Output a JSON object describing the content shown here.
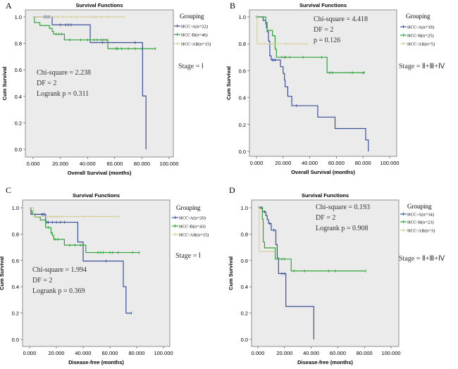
{
  "colors": {
    "HCC-A": "#3a4f9a",
    "HCC-B": "#2fa33a",
    "HCC-AB": "#d8cf9a",
    "plot_bg": "#ebebeb"
  },
  "chart_data": [
    {
      "panel": "A",
      "type": "line",
      "title": "Survival Functions",
      "xlabel": "Overall Survival (months)",
      "ylabel": "Cum Survival",
      "xlim": [
        0,
        100
      ],
      "ylim": [
        0,
        1
      ],
      "xticks": [
        "0.000",
        "20.000",
        "40.000",
        "60.000",
        "80.000",
        "100.000"
      ],
      "yticks": [
        "0.0",
        "0.2",
        "0.4",
        "0.6",
        "0.8",
        "1.0"
      ],
      "legend_title": "Grouping",
      "stats": [
        "Chi-square = 2.238",
        "DF = 2",
        "Logrank p = 0.311"
      ],
      "stage": "Stage = Ⅰ",
      "series": [
        {
          "name": "HCC-A(n=22)",
          "key": "HCC-A",
          "steps": [
            [
              0,
              1
            ],
            [
              14,
              0.94
            ],
            [
              42,
              0.806
            ],
            [
              80.5,
              0.403
            ],
            [
              83,
              0
            ]
          ],
          "end": 83,
          "censored": [
            8,
            9,
            10,
            11,
            12,
            20,
            24,
            26,
            28,
            51,
            75
          ]
        },
        {
          "name": "HCC-B(n=46)",
          "key": "HCC-B",
          "steps": [
            [
              0,
              1
            ],
            [
              1,
              0.957
            ],
            [
              5,
              0.935
            ],
            [
              12,
              0.913
            ],
            [
              14,
              0.891
            ],
            [
              15,
              0.87
            ],
            [
              23,
              0.826
            ],
            [
              55,
              0.76
            ]
          ],
          "end": 90,
          "censored": [
            17,
            19,
            21,
            27,
            35,
            40,
            42,
            45,
            47,
            50,
            52,
            54,
            61,
            62,
            65,
            70,
            75,
            80,
            90
          ]
        },
        {
          "name": "HCC-AB(n=15)",
          "key": "HCC-AB",
          "steps": [
            [
              0,
              1
            ]
          ],
          "end": 67,
          "censored": [
            15,
            18,
            22,
            28,
            32,
            36,
            43,
            45,
            46,
            50,
            55,
            67
          ]
        }
      ]
    },
    {
      "panel": "B",
      "type": "line",
      "title": "Survival Functions",
      "xlabel": "Overall Survival (months)",
      "ylabel": "Cum Survival",
      "xlim": [
        0,
        100
      ],
      "ylim": [
        0,
        1
      ],
      "xticks": [
        "0.000",
        "20.000",
        "40.000",
        "60.000",
        "80.000",
        "100.000"
      ],
      "yticks": [
        "0.0",
        "0.2",
        "0.4",
        "0.6",
        "0.8",
        "1.0"
      ],
      "legend_title": "Grouping",
      "stats": [
        "Chi-square = 4.418",
        "DF = 2",
        "p = 0.126"
      ],
      "stage": "Stage = Ⅱ+Ⅲ+Ⅳ",
      "series": [
        {
          "name": "HCC-A(n=39)",
          "key": "HCC-A",
          "steps": [
            [
              0,
              1
            ],
            [
              5,
              0.974
            ],
            [
              7,
              0.949
            ],
            [
              7.5,
              0.92
            ],
            [
              8,
              0.89
            ],
            [
              9,
              0.82
            ],
            [
              10,
              0.71
            ],
            [
              11,
              0.68
            ],
            [
              18,
              0.63
            ],
            [
              20,
              0.58
            ],
            [
              21,
              0.53
            ],
            [
              21.5,
              0.48
            ],
            [
              23.5,
              0.41
            ],
            [
              26.5,
              0.34
            ],
            [
              46,
              0.255
            ],
            [
              59,
              0.17
            ],
            [
              82,
              0.085
            ],
            [
              84,
              0
            ]
          ],
          "end": 84,
          "censored": [
            12,
            13,
            14,
            30
          ]
        },
        {
          "name": "HCC-B(n=25)",
          "key": "HCC-B",
          "steps": [
            [
              0,
              1
            ],
            [
              7,
              0.96
            ],
            [
              8,
              0.9
            ],
            [
              12,
              0.86
            ],
            [
              14,
              0.76
            ],
            [
              15,
              0.7
            ],
            [
              53,
              0.585
            ]
          ],
          "end": 81,
          "censored": [
            0,
            19,
            21,
            22,
            25,
            35,
            49,
            55,
            57,
            72,
            80,
            81
          ]
        },
        {
          "name": "HCC-AB(n=5)",
          "key": "HCC-AB",
          "steps": [
            [
              0,
              1
            ],
            [
              0.5,
              0.8
            ]
          ],
          "end": 38,
          "censored": [
            6,
            13,
            22,
            38
          ]
        }
      ]
    },
    {
      "panel": "C",
      "type": "line",
      "title": "Survival Functions",
      "xlabel": "Disease-free (months)",
      "ylabel": "Cum Survival",
      "xlim": [
        0,
        100
      ],
      "ylim": [
        0,
        1
      ],
      "xticks": [
        "0.000",
        "20.000",
        "40.000",
        "60.000",
        "80.000",
        "100.000"
      ],
      "yticks": [
        "0.0",
        "0.2",
        "0.4",
        "0.6",
        "0.8",
        "1.0"
      ],
      "legend_title": "Grouping",
      "stats": [
        "Chi-square = 1.994",
        "DF = 2",
        "Logrank p = 0.369"
      ],
      "stage": "Stage = Ⅰ",
      "series": [
        {
          "name": "HCC-A(n=20)",
          "key": "HCC-A",
          "steps": [
            [
              0,
              1
            ],
            [
              1,
              0.95
            ],
            [
              12,
              0.89
            ],
            [
              36,
              0.74
            ],
            [
              40,
              0.595
            ],
            [
              70,
              0.4
            ],
            [
              72,
              0.2
            ]
          ],
          "end": 76,
          "censored": [
            9,
            10,
            11,
            13,
            14,
            17,
            20,
            23,
            26,
            57,
            76
          ]
        },
        {
          "name": "HCC-B(n=43)",
          "key": "HCC-B",
          "steps": [
            [
              0,
              1
            ],
            [
              1,
              0.976
            ],
            [
              2,
              0.953
            ],
            [
              4,
              0.93
            ],
            [
              8,
              0.907
            ],
            [
              12,
              0.85
            ],
            [
              16,
              0.81
            ],
            [
              17,
              0.79
            ],
            [
              18,
              0.76
            ],
            [
              26,
              0.716
            ],
            [
              42,
              0.66
            ]
          ],
          "end": 82,
          "censored": [
            14,
            16,
            19,
            21,
            30,
            34,
            38,
            51,
            53,
            55,
            60,
            62,
            66,
            77,
            82
          ]
        },
        {
          "name": "HCC-AB(n=15)",
          "key": "HCC-AB",
          "steps": [
            [
              0,
              1
            ],
            [
              3,
              0.933
            ]
          ],
          "end": 67,
          "censored": [
            16,
            18,
            20,
            22,
            24,
            40,
            48,
            67
          ]
        }
      ]
    },
    {
      "panel": "D",
      "type": "line",
      "title": "Survival Functions",
      "xlabel": "Disease-free (months)",
      "ylabel": "Cum Survival",
      "xlim": [
        0,
        100
      ],
      "ylim": [
        0,
        1
      ],
      "xticks": [
        "0.000",
        "20.000",
        "40.000",
        "60.000",
        "80.000",
        "100.000"
      ],
      "yticks": [
        "0.0",
        "0.2",
        "0.4",
        "0.6",
        "0.8",
        "1.0"
      ],
      "legend_title": "Grouping",
      "stats": [
        "Chi-square = 0.193",
        "DF = 2",
        "Logrank p = 0.908"
      ],
      "stage": "Stage = Ⅱ+Ⅲ+Ⅳ",
      "series": [
        {
          "name": "HCC-A(n=34)",
          "key": "HCC-A",
          "steps": [
            [
              0,
              1
            ],
            [
              3.5,
              0.97
            ],
            [
              6,
              0.94
            ],
            [
              7,
              0.91
            ],
            [
              8,
              0.88
            ],
            [
              10,
              0.83
            ],
            [
              13.5,
              0.72
            ],
            [
              14.5,
              0.62
            ],
            [
              15.5,
              0.5
            ],
            [
              21,
              0.25
            ],
            [
              42,
              0
            ]
          ],
          "end": 42,
          "censored": [
            1,
            2,
            3,
            5,
            9,
            12,
            18,
            20
          ]
        },
        {
          "name": "HCC-B(n=23)",
          "key": "HCC-B",
          "steps": [
            [
              0,
              1
            ],
            [
              3.3,
              0.913
            ],
            [
              4,
              0.74
            ],
            [
              5,
              0.695
            ],
            [
              13,
              0.61
            ],
            [
              25,
              0.52
            ]
          ],
          "end": 81,
          "censored": [
            18,
            20,
            27,
            35,
            53,
            58,
            81
          ]
        },
        {
          "name": "HCC-AB(n=3)",
          "key": "HCC-AB",
          "steps": [
            [
              0,
              1
            ],
            [
              1,
              0.667
            ]
          ],
          "end": 13,
          "censored": []
        }
      ]
    }
  ]
}
